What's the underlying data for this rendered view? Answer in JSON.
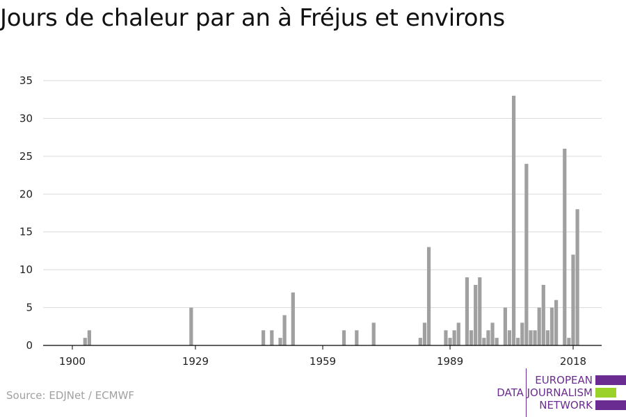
{
  "title": "Jours de chaleur par an à Fréjus et environs",
  "source": "Source: EDJNet / ECMWF",
  "logo": {
    "lines": [
      "EUROPEAN",
      "DATA JOURNALISM",
      "NETWORK"
    ],
    "colors": {
      "purple": "#6b2c91",
      "green": "#9bd22a"
    }
  },
  "colors": {
    "bar": "#a0a0a0",
    "grid": "#d9d9d9",
    "axis": "#000000"
  },
  "chart_data": {
    "type": "bar",
    "title": "Jours de chaleur par an à Fréjus et environs",
    "xlabel": "",
    "ylabel": "",
    "xlim": [
      1900,
      2018
    ],
    "ylim": [
      0,
      35
    ],
    "x_ticks": [
      1900,
      1929,
      1959,
      1989,
      2018
    ],
    "y_ticks": [
      0,
      5,
      10,
      15,
      20,
      25,
      30,
      35
    ],
    "grid": true,
    "points": [
      {
        "x": 1903,
        "y": 1
      },
      {
        "x": 1904,
        "y": 2
      },
      {
        "x": 1928,
        "y": 5
      },
      {
        "x": 1945,
        "y": 2
      },
      {
        "x": 1947,
        "y": 2
      },
      {
        "x": 1949,
        "y": 1
      },
      {
        "x": 1950,
        "y": 4
      },
      {
        "x": 1952,
        "y": 7
      },
      {
        "x": 1964,
        "y": 2
      },
      {
        "x": 1967,
        "y": 2
      },
      {
        "x": 1971,
        "y": 3
      },
      {
        "x": 1982,
        "y": 1
      },
      {
        "x": 1983,
        "y": 3
      },
      {
        "x": 1984,
        "y": 13
      },
      {
        "x": 1988,
        "y": 2
      },
      {
        "x": 1989,
        "y": 1
      },
      {
        "x": 1990,
        "y": 2
      },
      {
        "x": 1991,
        "y": 3
      },
      {
        "x": 1993,
        "y": 9
      },
      {
        "x": 1994,
        "y": 2
      },
      {
        "x": 1995,
        "y": 8
      },
      {
        "x": 1996,
        "y": 9
      },
      {
        "x": 1997,
        "y": 1
      },
      {
        "x": 1998,
        "y": 2
      },
      {
        "x": 1999,
        "y": 3
      },
      {
        "x": 2000,
        "y": 1
      },
      {
        "x": 2002,
        "y": 5
      },
      {
        "x": 2003,
        "y": 2
      },
      {
        "x": 2004,
        "y": 33
      },
      {
        "x": 2005,
        "y": 1
      },
      {
        "x": 2006,
        "y": 3
      },
      {
        "x": 2007,
        "y": 24
      },
      {
        "x": 2008,
        "y": 2
      },
      {
        "x": 2009,
        "y": 2
      },
      {
        "x": 2010,
        "y": 5
      },
      {
        "x": 2011,
        "y": 8
      },
      {
        "x": 2012,
        "y": 2
      },
      {
        "x": 2013,
        "y": 5
      },
      {
        "x": 2014,
        "y": 6
      },
      {
        "x": 2016,
        "y": 26
      },
      {
        "x": 2017,
        "y": 1
      },
      {
        "x": 2018,
        "y": 12
      },
      {
        "x": 2019,
        "y": 18
      }
    ]
  }
}
